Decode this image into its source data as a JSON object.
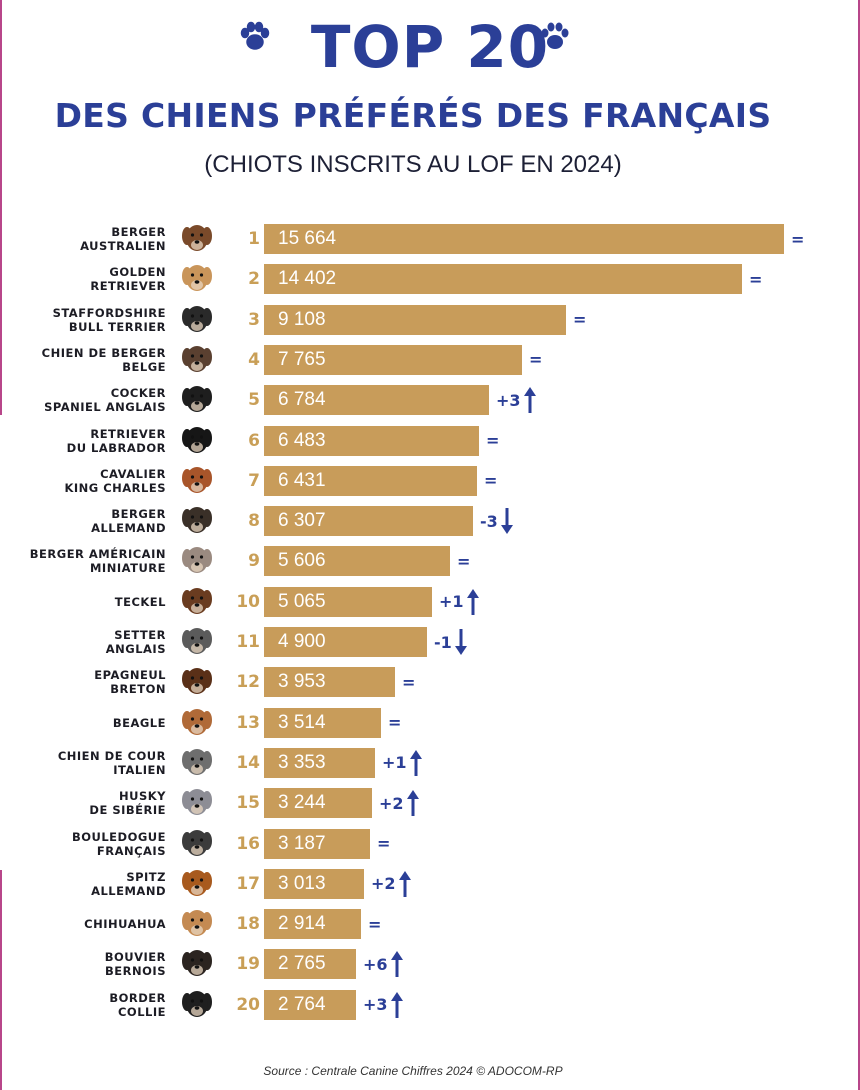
{
  "header": {
    "title": "TOP 20",
    "subtitle": "DES CHIENS PRÉFÉRÉS DES FRANÇAIS",
    "note": "(CHIOTS INSCRITS AU LOF EN 2024)"
  },
  "footer": {
    "source": "Source : Centrale Canine Chiffres 2024 © ADOCOM-RP"
  },
  "colors": {
    "title": "#2b3f97",
    "bar": "#c89c5a",
    "rank": "#c99f57",
    "trend": "#2b3f97"
  },
  "chart_data": {
    "type": "bar",
    "orientation": "horizontal",
    "title": "TOP 20",
    "subtitle": "DES CHIENS PRÉFÉRÉS DES FRANÇAIS",
    "note": "(CHIOTS INSCRITS AU LOF EN 2024)",
    "source": "Source : Centrale Canine Chiffres 2024 © ADOCOM-RP",
    "grid": false,
    "xlim": [
      0,
      15664
    ],
    "items": [
      {
        "rank": "1",
        "name_lines": [
          "BERGER",
          "AUSTRALIEN"
        ],
        "value": 15664,
        "label": "15 664",
        "change": "=",
        "icon": "dog-icon-berger-australien"
      },
      {
        "rank": "2",
        "name_lines": [
          "GOLDEN",
          "RETRIEVER"
        ],
        "value": 14402,
        "label": "14 402",
        "change": "=",
        "icon": "dog-icon-golden-retriever"
      },
      {
        "rank": "3",
        "name_lines": [
          "STAFFORDSHIRE",
          "BULL TERRIER"
        ],
        "value": 9108,
        "label": "9 108",
        "change": "=",
        "icon": "dog-icon-staffordshire"
      },
      {
        "rank": "4",
        "name_lines": [
          "CHIEN DE BERGER",
          "BELGE"
        ],
        "value": 7765,
        "label": "7 765",
        "change": "=",
        "icon": "dog-icon-berger-belge"
      },
      {
        "rank": "5",
        "name_lines": [
          "COCKER",
          "SPANIEL ANGLAIS"
        ],
        "value": 6784,
        "label": "6 784",
        "change": "+3",
        "icon": "dog-icon-cocker"
      },
      {
        "rank": "6",
        "name_lines": [
          "RETRIEVER",
          "DU LABRADOR"
        ],
        "value": 6483,
        "label": "6 483",
        "change": "=",
        "icon": "dog-icon-labrador"
      },
      {
        "rank": "7",
        "name_lines": [
          "CAVALIER",
          "KING CHARLES"
        ],
        "value": 6431,
        "label": "6 431",
        "change": "=",
        "icon": "dog-icon-cavalier"
      },
      {
        "rank": "8",
        "name_lines": [
          "BERGER",
          "ALLEMAND"
        ],
        "value": 6307,
        "label": "6 307",
        "change": "-3",
        "icon": "dog-icon-berger-allemand"
      },
      {
        "rank": "9",
        "name_lines": [
          "BERGER AMÉRICAIN",
          "MINIATURE"
        ],
        "value": 5606,
        "label": "5 606",
        "change": "=",
        "icon": "dog-icon-berger-americain"
      },
      {
        "rank": "10",
        "name_lines": [
          "TECKEL"
        ],
        "value": 5065,
        "label": "5 065",
        "change": "+1",
        "icon": "dog-icon-teckel"
      },
      {
        "rank": "11",
        "name_lines": [
          "SETTER",
          "ANGLAIS"
        ],
        "value": 4900,
        "label": "4 900",
        "change": "-1",
        "icon": "dog-icon-setter"
      },
      {
        "rank": "12",
        "name_lines": [
          "EPAGNEUL",
          "BRETON"
        ],
        "value": 3953,
        "label": "3 953",
        "change": "=",
        "icon": "dog-icon-epagneul"
      },
      {
        "rank": "13",
        "name_lines": [
          "BEAGLE"
        ],
        "value": 3514,
        "label": "3 514",
        "change": "=",
        "icon": "dog-icon-beagle"
      },
      {
        "rank": "14",
        "name_lines": [
          "CHIEN DE COUR",
          "ITALIEN"
        ],
        "value": 3353,
        "label": "3 353",
        "change": "+1",
        "icon": "dog-icon-cane-corso"
      },
      {
        "rank": "15",
        "name_lines": [
          "HUSKY",
          "DE SIBÉRIE"
        ],
        "value": 3244,
        "label": "3 244",
        "change": "+2",
        "icon": "dog-icon-husky"
      },
      {
        "rank": "16",
        "name_lines": [
          "BOULEDOGUE",
          "FRANÇAIS"
        ],
        "value": 3187,
        "label": "3 187",
        "change": "=",
        "icon": "dog-icon-bouledogue"
      },
      {
        "rank": "17",
        "name_lines": [
          "SPITZ",
          "ALLEMAND"
        ],
        "value": 3013,
        "label": "3 013",
        "change": "+2",
        "icon": "dog-icon-spitz"
      },
      {
        "rank": "18",
        "name_lines": [
          "CHIHUAHUA"
        ],
        "value": 2914,
        "label": "2 914",
        "change": "=",
        "icon": "dog-icon-chihuahua"
      },
      {
        "rank": "19",
        "name_lines": [
          "BOUVIER",
          "BERNOIS"
        ],
        "value": 2765,
        "label": "2 765",
        "change": "+6",
        "icon": "dog-icon-bouvier"
      },
      {
        "rank": "20",
        "name_lines": [
          "BORDER",
          "COLLIE"
        ],
        "value": 2764,
        "label": "2 764",
        "change": "+3",
        "icon": "dog-icon-border-collie"
      }
    ]
  }
}
